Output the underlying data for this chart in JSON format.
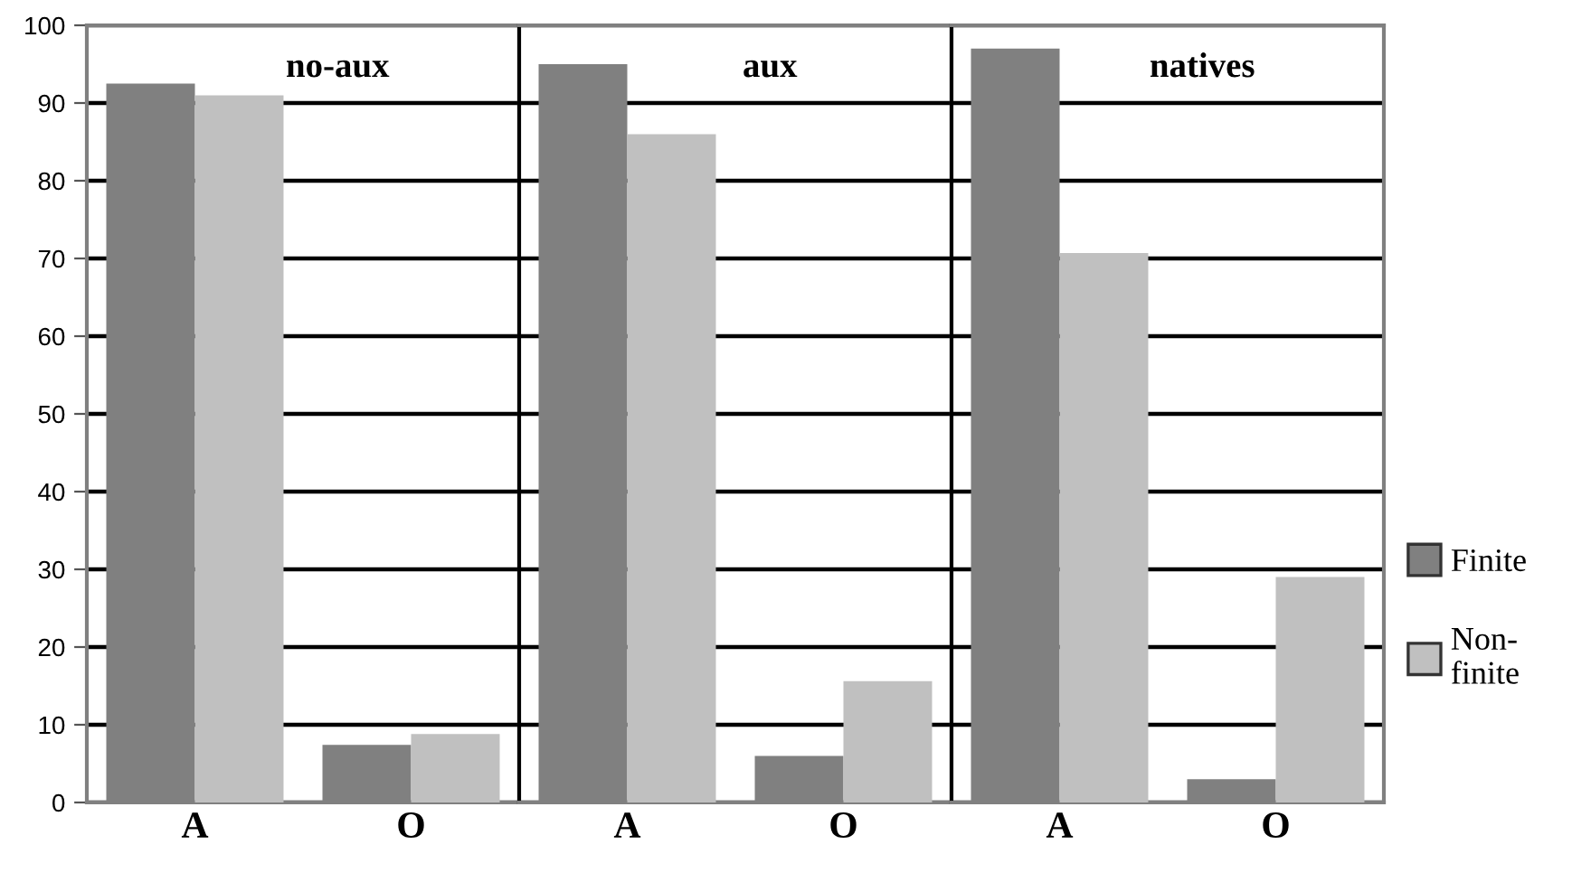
{
  "chart_data": [
    {
      "type": "bar",
      "title": "no-aux",
      "categories": [
        "A",
        "O"
      ],
      "series": [
        {
          "name": "Finite",
          "color": "#808080",
          "values": [
            92.5,
            7.4
          ]
        },
        {
          "name": "Non-finite",
          "color": "#c0c0c0",
          "values": [
            91,
            8.8
          ]
        }
      ],
      "ylim": [
        0,
        100
      ],
      "yticks": [
        0,
        10,
        20,
        30,
        40,
        50,
        60,
        70,
        80,
        90,
        100
      ],
      "grid": "y",
      "legend": "right"
    },
    {
      "type": "bar",
      "title": "aux",
      "categories": [
        "A",
        "O"
      ],
      "series": [
        {
          "color": "#808080",
          "values": [
            95,
            6
          ]
        },
        {
          "color": "#c0c0c0",
          "values": [
            86,
            15.6
          ]
        }
      ],
      "ylim": [
        0,
        100
      ],
      "yticks": [
        0,
        10,
        20,
        30,
        40,
        50,
        60,
        70,
        80,
        90,
        100
      ],
      "grid": "y",
      "tick_labels": "x"
    },
    {
      "type": "bar",
      "title": "natives",
      "categories": [
        "A",
        "O"
      ],
      "series": [
        {
          "color": "#808080",
          "values": [
            97,
            3
          ]
        },
        {
          "color": "#c0c0c0",
          "values": [
            70.7,
            29
          ]
        }
      ],
      "ylim": [
        0,
        100
      ],
      "yticks": [
        0,
        10,
        20,
        30,
        40,
        50,
        60,
        70,
        80,
        90,
        100
      ],
      "grid": "y",
      "tick_labels": "x"
    }
  ]
}
